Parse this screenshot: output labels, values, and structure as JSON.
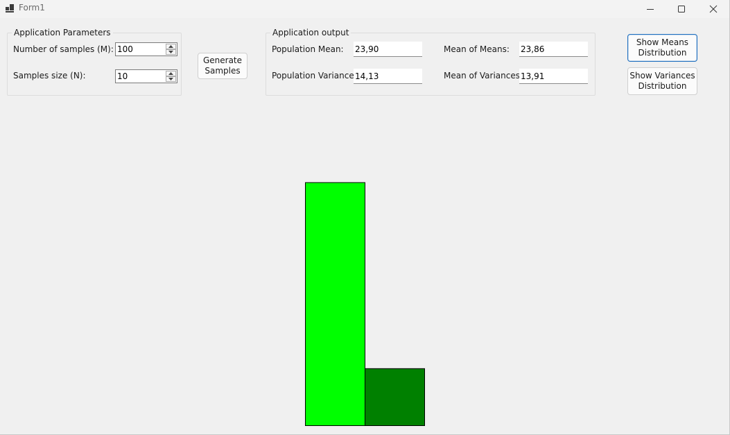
{
  "window": {
    "title": "Form1"
  },
  "params": {
    "legend": "Application Parameters",
    "samples_label": "Number of samples (M):",
    "samples_value": "100",
    "size_label": "Samples size (N):",
    "size_value": "10"
  },
  "generate_label": "Generate\nSamples",
  "output": {
    "legend": "Application output",
    "pop_mean_label": "Population Mean:",
    "pop_mean_value": "23,90",
    "pop_var_label": "Population Variance:",
    "pop_var_value": "14,13",
    "mean_means_label": "Mean of Means:",
    "mean_means_value": "23,86",
    "mean_vars_label": "Mean of Variances:",
    "mean_vars_value": "13,91"
  },
  "buttons": {
    "show_means": "Show Means\nDistribution",
    "show_vars": "Show Variances\nDistribution"
  },
  "chart_data": {
    "type": "bar",
    "values": [
      4.05,
      0.95
    ],
    "colors": [
      "#00ff00",
      "#008000"
    ],
    "stroke": "#000000"
  }
}
